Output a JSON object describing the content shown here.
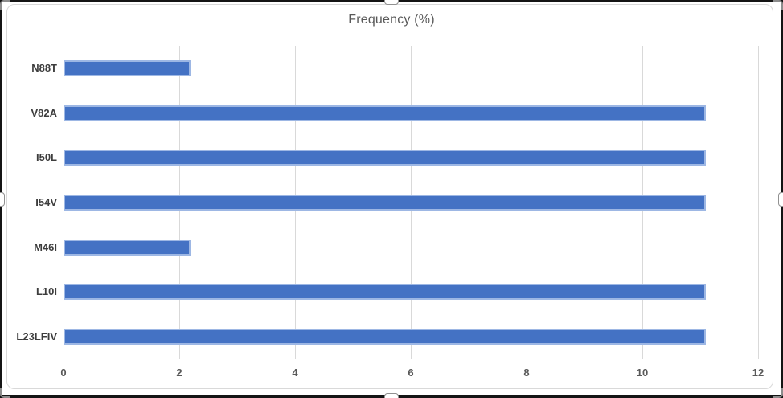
{
  "chart_data": {
    "type": "bar",
    "orientation": "horizontal",
    "title": "Frequency (%)",
    "categories": [
      "N88T",
      "V82A",
      "I50L",
      "I54V",
      "M46I",
      "L10I",
      "L23LFIV"
    ],
    "values": [
      2.2,
      11.1,
      11.1,
      11.1,
      2.2,
      11.1,
      11.1
    ],
    "xlabel": "",
    "ylabel": "",
    "xlim": [
      0,
      12
    ],
    "xticks": [
      "0",
      "2",
      "4",
      "6",
      "8",
      "10",
      "12"
    ],
    "grid": "vertical-gridlines-on",
    "legend": "none",
    "colors": {
      "bar_fill": "#4472C4",
      "bar_border": "#9DB7E4",
      "gridline": "#D9D9D9",
      "title_text": "#595959",
      "tick_label_text": "#595959",
      "category_label_text": "#3D3D3D",
      "picture_border": "#141414"
    }
  }
}
